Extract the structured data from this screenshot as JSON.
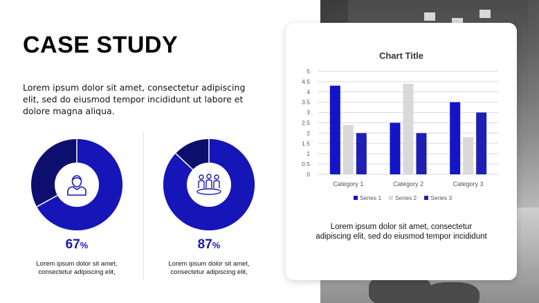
{
  "slide": {
    "title": "CASE STUDY",
    "intro": "Lorem ipsum dolor sit amet, consectetur adipiscing elit, sed do eiusmod tempor incididunt ut labore et dolore magna aliqua."
  },
  "stats": [
    {
      "value": 67,
      "value_text": "67",
      "unit": "%",
      "icon": "person-icon",
      "caption_line1": "Lorem ipsum dolor sit amet,",
      "caption_line2": "consectetur adipiscing elit,"
    },
    {
      "value": 87,
      "value_text": "87",
      "unit": "%",
      "icon": "team-icon",
      "caption_line1": "Lorem ipsum dolor sit amet,",
      "caption_line2": "consectetur adipiscing elit,"
    }
  ],
  "colors": {
    "accent": "#1616b8",
    "dark": "#0e0e6e",
    "series": [
      "#1414c8",
      "#d9d9d9",
      "#1f1fb4"
    ]
  },
  "chart_data": {
    "type": "bar",
    "title": "Chart Title",
    "categories": [
      "Category 1",
      "Category 2",
      "Category 3"
    ],
    "series": [
      {
        "name": "Series 1",
        "values": [
          4.3,
          2.5,
          3.5
        ]
      },
      {
        "name": "Series 2",
        "values": [
          2.4,
          4.4,
          1.8
        ]
      },
      {
        "name": "Series 3",
        "values": [
          2,
          2,
          3
        ]
      }
    ],
    "yticks": [
      "0",
      "0.5",
      "1",
      "1.5",
      "2",
      "2.5",
      "3",
      "3.5",
      "4",
      "4.5",
      "5"
    ],
    "ylim": [
      0,
      5
    ],
    "grid": true,
    "legend_position": "bottom"
  },
  "card": {
    "text": "Lorem ipsum dolor sit amet, consectetur adipiscing elit, sed do eiusmod tempor incididunt"
  }
}
